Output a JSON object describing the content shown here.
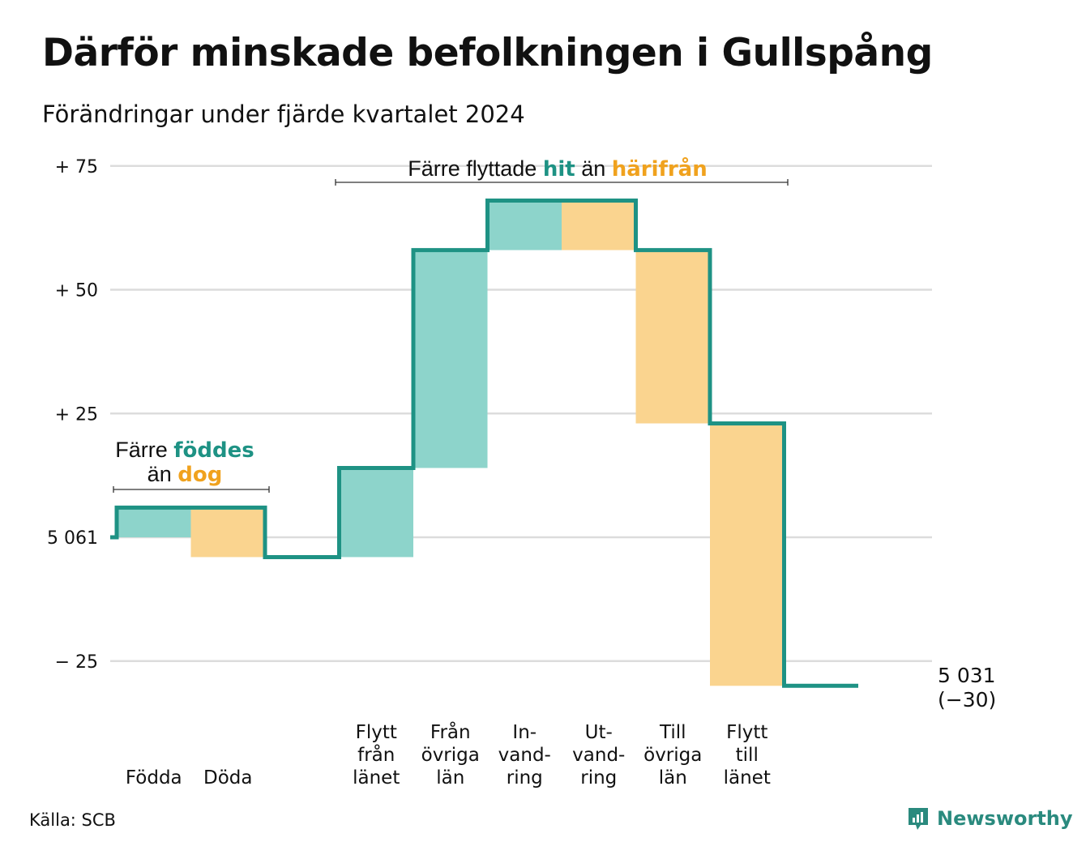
{
  "title": "Därför minskade befolkningen i Gullspång",
  "subtitle": "Förändringar under fjärde kvartalet 2024",
  "source": "Källa: SCB",
  "brand": "Newsworthy",
  "colors": {
    "line": "#1e9284",
    "increase": "#8dd4cb",
    "decrease": "#fad48f",
    "highlight_in": "#1e9284",
    "highlight_out": "#f0a21e",
    "grid": "#dcdcdc"
  },
  "chart_data": {
    "type": "waterfall",
    "start_value": 5061,
    "ylim": [
      -30,
      75
    ],
    "yticks": [
      {
        "value": 75,
        "label": "+ 75"
      },
      {
        "value": 50,
        "label": "+ 50"
      },
      {
        "value": 25,
        "label": "+ 25"
      },
      {
        "value": 0,
        "label": "5 061"
      },
      {
        "value": -25,
        "label": "− 25"
      }
    ],
    "steps": [
      {
        "label": [
          "Födda"
        ],
        "change": 6,
        "kind": "in"
      },
      {
        "label": [
          "Döda"
        ],
        "change": -10,
        "kind": "out"
      },
      {
        "label": [
          ""
        ],
        "change": 0,
        "kind": "none"
      },
      {
        "label": [
          "Flytt",
          "från",
          "länet"
        ],
        "change": 18,
        "kind": "in"
      },
      {
        "label": [
          "Från",
          "övriga",
          "län"
        ],
        "change": 44,
        "kind": "in"
      },
      {
        "label": [
          "In-",
          "vand-",
          "ring"
        ],
        "change": 10,
        "kind": "in"
      },
      {
        "label": [
          "Ut-",
          "vand-",
          "ring"
        ],
        "change": -10,
        "kind": "out"
      },
      {
        "label": [
          "Till",
          "övriga",
          "län"
        ],
        "change": -35,
        "kind": "out"
      },
      {
        "label": [
          "Flytt",
          "till",
          "länet"
        ],
        "change": -53,
        "kind": "out"
      },
      {
        "label": [
          ""
        ],
        "change": 0,
        "kind": "none"
      }
    ],
    "end_label": [
      "5 031",
      "(−30)"
    ],
    "annotations": [
      {
        "lines": [
          [
            {
              "text": "Färre ",
              "style": "normal"
            },
            {
              "text": "föddes",
              "style": "in"
            }
          ],
          [
            {
              "text": "än ",
              "style": "normal"
            },
            {
              "text": "dog",
              "style": "out"
            }
          ]
        ],
        "span": [
          0,
          1
        ]
      },
      {
        "lines": [
          [
            {
              "text": "Färre flyttade ",
              "style": "normal"
            },
            {
              "text": "hit",
              "style": "in"
            },
            {
              "text": " än ",
              "style": "normal"
            },
            {
              "text": "härifrån",
              "style": "out"
            }
          ]
        ],
        "span": [
          3,
          8
        ]
      }
    ]
  }
}
